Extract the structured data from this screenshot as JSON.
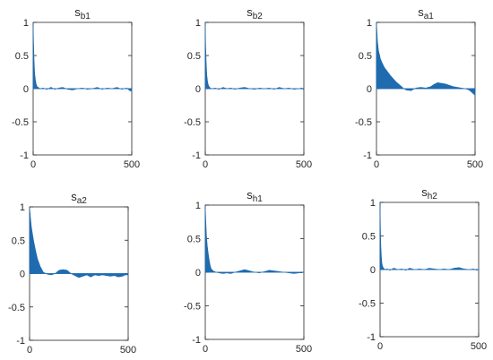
{
  "colors": {
    "fill": "#1f6bb0",
    "axis": "#262626",
    "background": "#ffffff"
  },
  "chart_data": [
    {
      "type": "area",
      "title": "s",
      "title_sub": "b1",
      "xlim": [
        0,
        500
      ],
      "ylim": [
        -1,
        1
      ],
      "xticks": [
        0,
        500
      ],
      "yticks": [
        -1,
        -0.5,
        0,
        0.5,
        1
      ],
      "xtick_labels": [
        "0",
        "500"
      ],
      "ytick_labels": [
        "-1",
        "-0.5",
        "0",
        "0.5",
        "1"
      ],
      "x": [
        0,
        2,
        5,
        8,
        12,
        16,
        20,
        25,
        35,
        50,
        70,
        90,
        110,
        130,
        150,
        175,
        200,
        225,
        250,
        275,
        300,
        325,
        350,
        375,
        400,
        425,
        450,
        475,
        490,
        500
      ],
      "values": [
        1.0,
        0.7,
        0.4,
        0.22,
        0.12,
        0.06,
        0.03,
        0.02,
        0.0,
        0.01,
        -0.01,
        0.02,
        -0.01,
        0.01,
        0.02,
        -0.01,
        -0.02,
        0.0,
        0.01,
        -0.01,
        0.0,
        0.02,
        -0.01,
        0.01,
        0.0,
        0.02,
        -0.01,
        0.01,
        -0.03,
        -0.04
      ]
    },
    {
      "type": "area",
      "title": "s",
      "title_sub": "b2",
      "xlim": [
        0,
        500
      ],
      "ylim": [
        -1,
        1
      ],
      "xticks": [
        0,
        500
      ],
      "yticks": [
        -1,
        -0.5,
        0,
        0.5,
        1
      ],
      "xtick_labels": [
        "0",
        "500"
      ],
      "ytick_labels": [
        "-1",
        "-0.5",
        "0",
        "0.5",
        "1"
      ],
      "x": [
        0,
        2,
        5,
        8,
        12,
        16,
        20,
        25,
        35,
        50,
        70,
        90,
        110,
        130,
        150,
        175,
        200,
        225,
        250,
        275,
        300,
        325,
        350,
        375,
        400,
        425,
        450,
        475,
        490,
        500
      ],
      "values": [
        1.0,
        0.65,
        0.38,
        0.2,
        0.1,
        0.05,
        0.03,
        0.01,
        0.0,
        0.01,
        -0.01,
        0.02,
        0.0,
        0.01,
        -0.01,
        0.01,
        0.02,
        0.0,
        -0.01,
        0.01,
        0.0,
        0.01,
        -0.01,
        0.02,
        0.0,
        0.01,
        -0.01,
        0.0,
        0.01,
        -0.02
      ]
    },
    {
      "type": "area",
      "title": "s",
      "title_sub": "a1",
      "xlim": [
        0,
        500
      ],
      "ylim": [
        -1,
        1
      ],
      "xticks": [
        0,
        500
      ],
      "yticks": [
        -1,
        -0.5,
        0,
        0.5,
        1
      ],
      "xtick_labels": [
        "0",
        "500"
      ],
      "ytick_labels": [
        "-1",
        "-0.5",
        "0",
        "0.5",
        "1"
      ],
      "x": [
        0,
        5,
        10,
        20,
        30,
        40,
        55,
        70,
        85,
        100,
        120,
        135,
        150,
        175,
        200,
        225,
        250,
        275,
        290,
        310,
        330,
        350,
        370,
        390,
        410,
        430,
        450,
        470,
        485,
        500
      ],
      "values": [
        1.0,
        0.72,
        0.58,
        0.45,
        0.38,
        0.32,
        0.26,
        0.2,
        0.15,
        0.1,
        0.05,
        0.01,
        -0.02,
        -0.03,
        0.01,
        0.02,
        0.01,
        0.03,
        0.06,
        0.09,
        0.08,
        0.07,
        0.05,
        0.03,
        0.02,
        0.01,
        0.0,
        -0.02,
        -0.06,
        -0.1
      ]
    },
    {
      "type": "area",
      "title": "s",
      "title_sub": "a2",
      "xlim": [
        0,
        500
      ],
      "ylim": [
        -1,
        1
      ],
      "xticks": [
        0,
        500
      ],
      "yticks": [
        -1,
        -0.5,
        0,
        0.5,
        1
      ],
      "xtick_labels": [
        "0",
        "500"
      ],
      "ytick_labels": [
        "-1",
        "-0.5",
        "0",
        "0.5",
        "1"
      ],
      "x": [
        0,
        5,
        10,
        20,
        30,
        40,
        55,
        70,
        90,
        110,
        130,
        150,
        170,
        190,
        210,
        230,
        250,
        270,
        290,
        310,
        330,
        350,
        370,
        390,
        410,
        430,
        450,
        470,
        485,
        500
      ],
      "values": [
        1.0,
        0.82,
        0.68,
        0.5,
        0.35,
        0.22,
        0.1,
        0.02,
        -0.01,
        -0.02,
        0.0,
        0.05,
        0.06,
        0.05,
        0.0,
        -0.03,
        -0.06,
        -0.04,
        -0.02,
        -0.05,
        -0.02,
        -0.03,
        -0.02,
        -0.03,
        -0.04,
        -0.03,
        -0.05,
        -0.04,
        -0.02,
        -0.02
      ]
    },
    {
      "type": "area",
      "title": "s",
      "title_sub": "h1",
      "xlim": [
        0,
        500
      ],
      "ylim": [
        -1,
        1
      ],
      "xticks": [
        0,
        500
      ],
      "yticks": [
        -1,
        -0.5,
        0,
        0.5,
        1
      ],
      "xtick_labels": [
        "0",
        "500"
      ],
      "ytick_labels": [
        "-1",
        "-0.5",
        "0",
        "0.5",
        "1"
      ],
      "x": [
        0,
        3,
        6,
        10,
        15,
        20,
        25,
        30,
        40,
        55,
        70,
        90,
        110,
        130,
        150,
        175,
        200,
        225,
        250,
        275,
        300,
        325,
        350,
        375,
        400,
        425,
        450,
        475,
        490,
        500
      ],
      "values": [
        1.0,
        0.75,
        0.55,
        0.4,
        0.28,
        0.18,
        0.1,
        0.05,
        0.02,
        0.0,
        -0.01,
        -0.02,
        -0.01,
        -0.02,
        0.0,
        0.02,
        0.04,
        0.02,
        0.0,
        -0.01,
        0.01,
        0.03,
        0.02,
        0.01,
        0.0,
        -0.01,
        -0.02,
        -0.01,
        -0.01,
        0.0
      ]
    },
    {
      "type": "area",
      "title": "s",
      "title_sub": "h2",
      "xlim": [
        0,
        500
      ],
      "ylim": [
        -1,
        1
      ],
      "xticks": [
        0,
        500
      ],
      "yticks": [
        -1,
        -0.5,
        0,
        0.5,
        1
      ],
      "xtick_labels": [
        "0",
        "500"
      ],
      "ytick_labels": [
        "-1",
        "-0.5",
        "0",
        "0.5",
        "1"
      ],
      "x": [
        0,
        2,
        4,
        7,
        10,
        14,
        18,
        25,
        35,
        50,
        70,
        90,
        110,
        130,
        150,
        175,
        200,
        225,
        250,
        275,
        300,
        325,
        350,
        375,
        400,
        425,
        450,
        475,
        490,
        500
      ],
      "values": [
        1.0,
        0.6,
        0.35,
        0.18,
        0.08,
        0.04,
        0.02,
        0.0,
        0.01,
        -0.01,
        0.02,
        0.0,
        0.01,
        -0.01,
        0.02,
        0.0,
        0.01,
        0.0,
        0.02,
        0.01,
        0.0,
        0.01,
        0.0,
        0.02,
        0.03,
        0.01,
        0.0,
        0.01,
        -0.01,
        0.0
      ]
    }
  ]
}
